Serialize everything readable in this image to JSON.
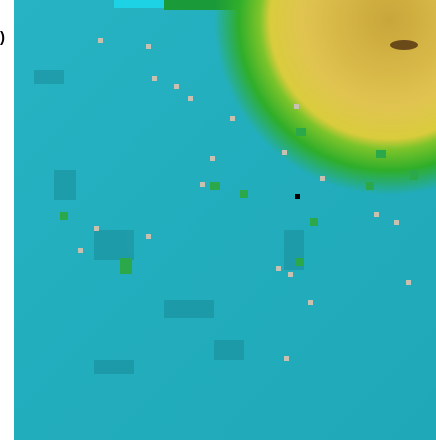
{
  "panel_label": ")"
}
